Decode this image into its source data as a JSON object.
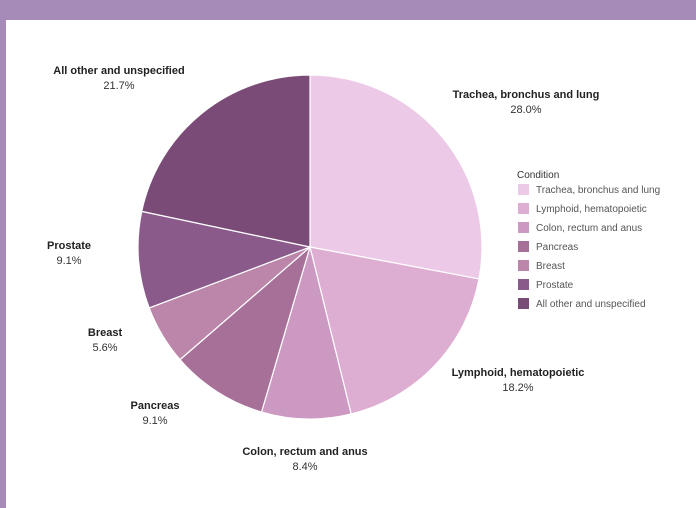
{
  "chart_data": {
    "type": "pie",
    "legend": {
      "title": "Condition",
      "placement": "right"
    },
    "slices": [
      {
        "label": "Trachea, bronchus and lung",
        "value": 28.0,
        "display": "28.0%",
        "color": "#ecc9e6"
      },
      {
        "label": "Lymphoid, hematopoietic",
        "value": 18.2,
        "display": "18.2%",
        "color": "#ddaed2"
      },
      {
        "label": "Colon, rectum and anus",
        "value": 8.4,
        "display": "8.4%",
        "color": "#cc99c2"
      },
      {
        "label": "Pancreas",
        "value": 9.1,
        "display": "9.1%",
        "color": "#a77099"
      },
      {
        "label": "Breast",
        "value": 5.6,
        "display": "5.6%",
        "color": "#bb86a9"
      },
      {
        "label": "Prostate",
        "value": 9.1,
        "display": "9.1%",
        "color": "#8a5a8a"
      },
      {
        "label": "All other and unspecified",
        "value": 21.7,
        "display": "21.7%",
        "color": "#7a4b77"
      }
    ]
  }
}
